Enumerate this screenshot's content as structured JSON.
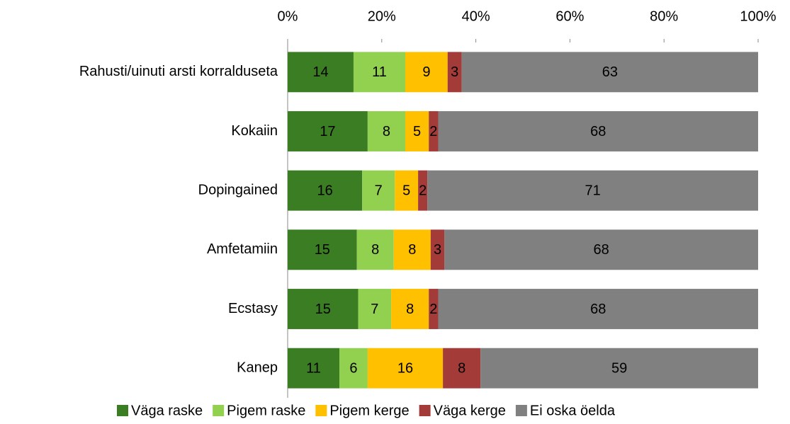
{
  "chart_data": {
    "type": "bar",
    "orientation": "horizontal",
    "stacked": "percent",
    "categories": [
      "Rahusti/uinuti arsti korralduseta",
      "Kokaiin",
      "Dopingained",
      "Amfetamiin",
      "Ecstasy",
      "Kanep"
    ],
    "series": [
      {
        "name": "Väga raske",
        "color": "#3b7d23",
        "values": [
          14,
          17,
          16,
          15,
          15,
          11
        ]
      },
      {
        "name": "Pigem raske",
        "color": "#92d050",
        "values": [
          11,
          8,
          7,
          8,
          7,
          6
        ]
      },
      {
        "name": "Pigem kerge",
        "color": "#ffc000",
        "values": [
          9,
          5,
          5,
          8,
          8,
          16
        ]
      },
      {
        "name": "Väga kerge",
        "color": "#a33b39",
        "values": [
          3,
          2,
          2,
          3,
          2,
          8
        ]
      },
      {
        "name": "Ei oska öelda",
        "color": "#808080",
        "values": [
          63,
          68,
          71,
          68,
          68,
          59
        ]
      }
    ],
    "xlim": [
      0,
      100
    ],
    "xticks": [
      {
        "value": 0,
        "label": "0%"
      },
      {
        "value": 20,
        "label": "20%"
      },
      {
        "value": 40,
        "label": "40%"
      },
      {
        "value": 60,
        "label": "60%"
      },
      {
        "value": 80,
        "label": "80%"
      },
      {
        "value": 100,
        "label": "100%"
      }
    ],
    "legend": "bottom"
  }
}
